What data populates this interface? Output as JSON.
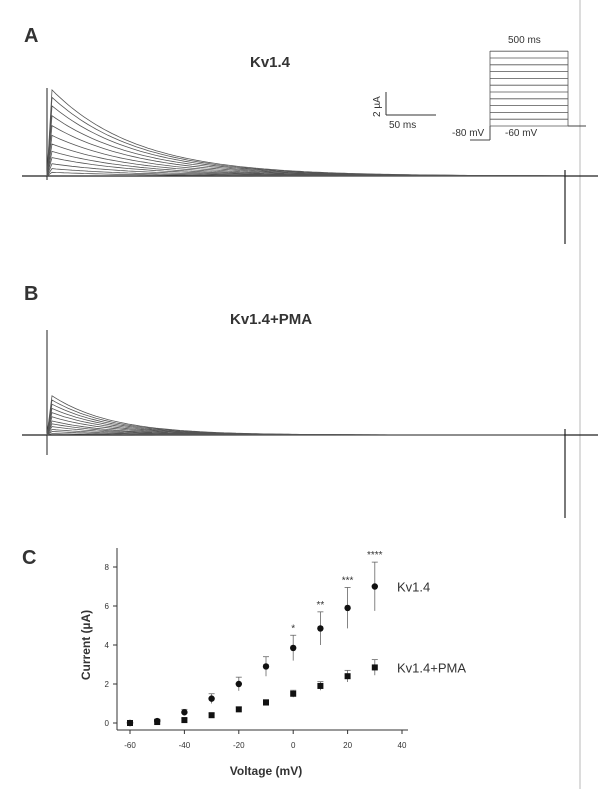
{
  "panels": {
    "a": {
      "letter": "A",
      "title": "Kv1.4"
    },
    "b": {
      "letter": "B",
      "title": "Kv1.4+PMA"
    },
    "c": {
      "letter": "C"
    }
  },
  "scale_bar": {
    "current": "2 µA",
    "time": "50 ms"
  },
  "protocol": {
    "duration": "500 ms",
    "holding": "-80 mV",
    "start": "-60 mV"
  },
  "traces": {
    "a_peak_amplitudes": [
      0.3,
      0.6,
      1.0,
      1.5,
      2.0,
      2.6,
      3.3,
      4.1,
      4.9,
      5.7,
      6.4,
      7.0
    ],
    "b_peak_amplitudes": [
      0.1,
      0.25,
      0.4,
      0.6,
      0.8,
      1.0,
      1.3,
      1.6,
      1.9,
      2.2,
      2.5,
      2.8
    ]
  },
  "chart_data": {
    "type": "scatter",
    "title": "",
    "xlabel": "Voltage (mV)",
    "ylabel": "Current (µA)",
    "xlim": [
      -60,
      40
    ],
    "ylim": [
      0,
      8
    ],
    "xticks": [
      -60,
      -40,
      -20,
      0,
      20,
      40
    ],
    "yticks": [
      0,
      2,
      4,
      6,
      8
    ],
    "grid": false,
    "x": [
      -60,
      -50,
      -40,
      -30,
      -20,
      -10,
      0,
      10,
      20,
      30
    ],
    "series": [
      {
        "name": "Kv1.4",
        "marker": "circle",
        "values": [
          0.0,
          0.1,
          0.55,
          1.25,
          2.0,
          2.9,
          3.85,
          4.85,
          5.9,
          7.0
        ],
        "errors": [
          0.05,
          0.1,
          0.15,
          0.25,
          0.35,
          0.5,
          0.65,
          0.85,
          1.05,
          1.25
        ],
        "significance": [
          "",
          "",
          "",
          "",
          "",
          "",
          "*",
          "**",
          "***",
          "****"
        ]
      },
      {
        "name": "Kv1.4+PMA",
        "marker": "square",
        "values": [
          0.0,
          0.05,
          0.15,
          0.4,
          0.7,
          1.05,
          1.5,
          1.9,
          2.4,
          2.85
        ],
        "errors": [
          0.03,
          0.05,
          0.08,
          0.1,
          0.12,
          0.15,
          0.18,
          0.22,
          0.3,
          0.4
        ],
        "significance": [
          "",
          "",
          "",
          "",
          "",
          "",
          "",
          "",
          "",
          ""
        ]
      }
    ]
  }
}
